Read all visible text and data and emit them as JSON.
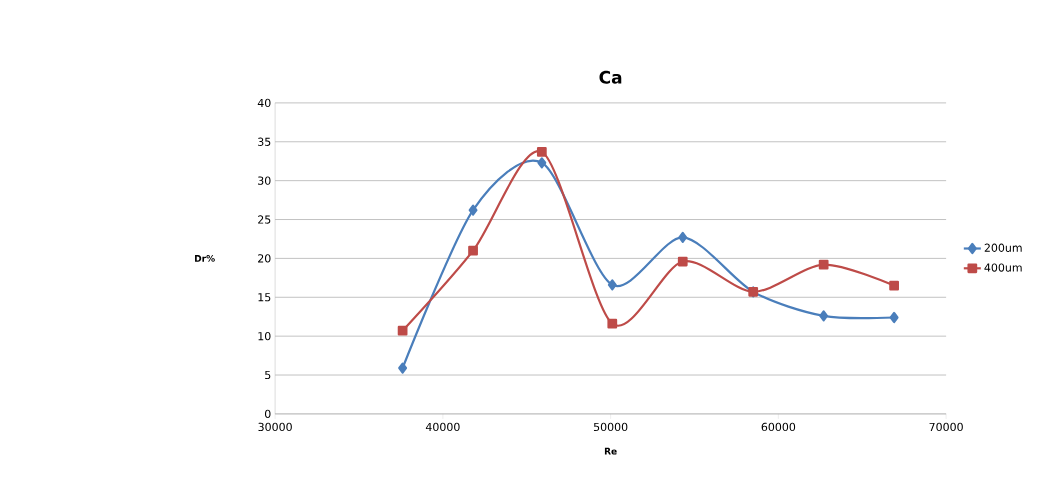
{
  "chart_data": {
    "type": "line",
    "title": "Ca",
    "xlabel": "Re",
    "ylabel": "Dr%",
    "xlim": [
      30000,
      70000
    ],
    "xticks": [
      30000,
      40000,
      50000,
      60000,
      70000
    ],
    "ylim": [
      0,
      40
    ],
    "yticks": [
      0,
      5,
      10,
      15,
      20,
      25,
      30,
      35,
      40
    ],
    "grid": "y",
    "legend": "right",
    "line_style": "solid",
    "series": [
      {
        "name": "200um",
        "color": "#4a7ebb",
        "marker": "diamond",
        "x": [
          37600,
          41800,
          45900,
          50100,
          54300,
          58500,
          62700,
          66900
        ],
        "values": [
          5.9,
          26.2,
          32.3,
          16.6,
          22.7,
          15.7,
          12.6,
          12.4
        ]
      },
      {
        "name": "400um",
        "color": "#be4b48",
        "marker": "square",
        "x": [
          37600,
          41800,
          45900,
          50100,
          54300,
          58500,
          62700,
          66900
        ],
        "values": [
          10.7,
          21.0,
          33.7,
          11.6,
          19.6,
          15.7,
          19.2,
          16.5
        ]
      }
    ]
  }
}
